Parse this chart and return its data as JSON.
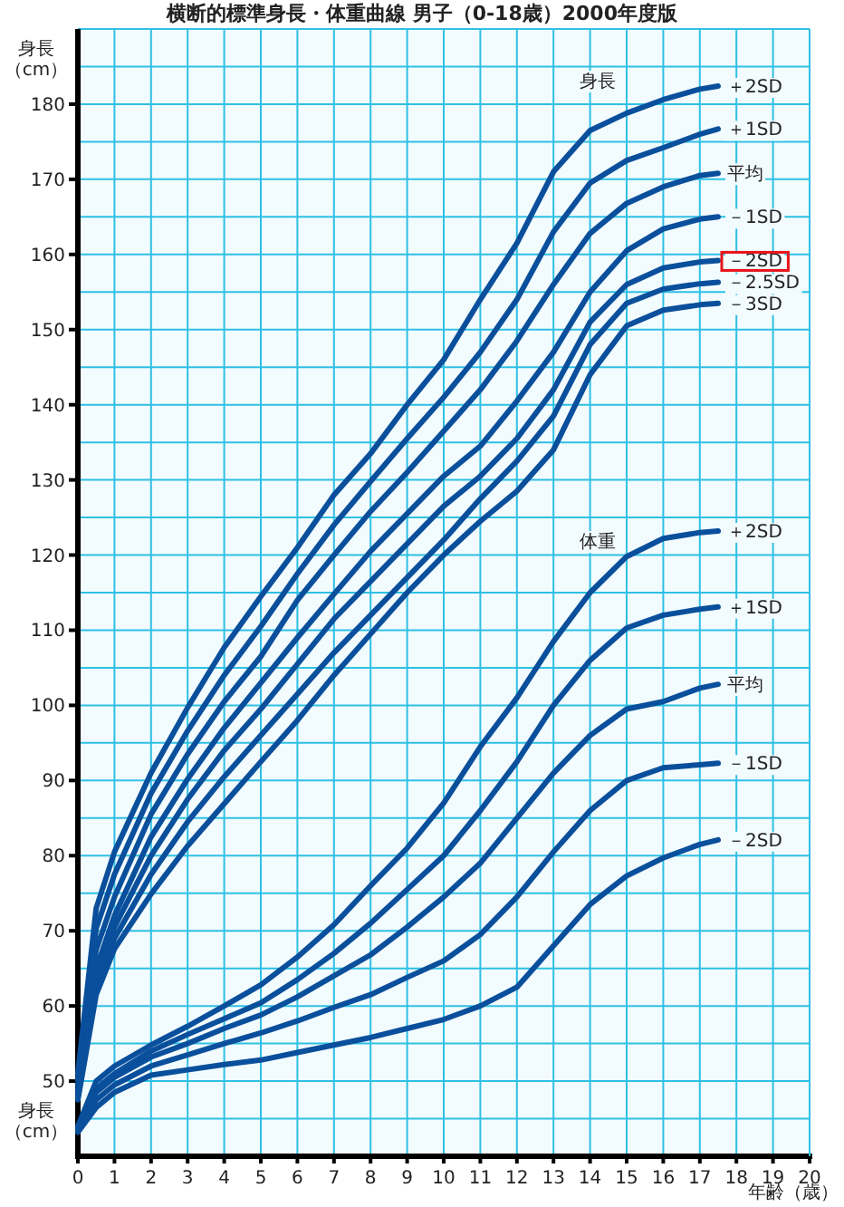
{
  "chart_data": {
    "type": "line",
    "title": "横断的標準身長・体重曲線 男子（0-18歳）2000年度版",
    "xlabel": "年齢（歳）",
    "ylabel": "身長（cm）",
    "annotations": [
      "身長",
      "体重",
      "身長（cm）"
    ],
    "x": [
      0,
      0.5,
      1,
      2,
      3,
      4,
      5,
      6,
      7,
      8,
      9,
      10,
      11,
      12,
      13,
      14,
      15,
      16,
      17,
      17.5
    ],
    "xlim": [
      0,
      20
    ],
    "ylim": [
      40,
      190
    ],
    "xticks": [
      0,
      1,
      2,
      3,
      4,
      5,
      6,
      7,
      8,
      9,
      10,
      11,
      12,
      13,
      14,
      15,
      16,
      17,
      18,
      19,
      20
    ],
    "yticks": [
      50,
      60,
      70,
      80,
      90,
      100,
      110,
      120,
      130,
      140,
      150,
      160,
      170,
      180
    ],
    "grid": true,
    "series": [
      {
        "name": "＋2SD",
        "color": "#0a4f9c",
        "values": [
          51,
          73,
          80.5,
          91,
          99.7,
          107.7,
          114.5,
          121,
          128,
          133.5,
          140,
          146,
          154,
          161.5,
          171,
          176.5,
          178.8,
          180.6,
          182,
          182.4
        ]
      },
      {
        "name": "＋1SD",
        "color": "#0a4f9c",
        "values": [
          50.2,
          70.3,
          77.5,
          88.3,
          96.6,
          104,
          110.5,
          117.5,
          124,
          129.8,
          135.5,
          141,
          147,
          154,
          163,
          169.5,
          172.5,
          174.2,
          176,
          176.7
        ]
      },
      {
        "name": "平均",
        "color": "#0a4f9c",
        "values": [
          49.5,
          67.5,
          74.5,
          85.5,
          93.5,
          100.5,
          106.5,
          114,
          120,
          125.8,
          131,
          136.5,
          142,
          148.5,
          156,
          162.8,
          166.8,
          169,
          170.5,
          170.8
        ]
      },
      {
        "name": "－1SD",
        "color": "#0a4f9c",
        "values": [
          48.8,
          65,
          72,
          82.5,
          90.2,
          97,
          103,
          109,
          114.8,
          120.5,
          125.5,
          130.5,
          134.5,
          140.5,
          147,
          155,
          160.5,
          163.4,
          164.7,
          165
        ]
      },
      {
        "name": "－2SD",
        "color": "#0a4f9c",
        "values": [
          48.2,
          63.5,
          70.5,
          80,
          87.5,
          94,
          99.5,
          105.5,
          111.5,
          116.5,
          121.5,
          126.5,
          130.5,
          135.5,
          142,
          151,
          156,
          158.2,
          159,
          159.2
        ]
      },
      {
        "name": "－2.5SD",
        "color": "#0a4f9c",
        "values": [
          47.8,
          62.5,
          69,
          77.5,
          84.5,
          90.5,
          96,
          101.5,
          107,
          112,
          117,
          122,
          127.5,
          132.5,
          138.5,
          148,
          153.5,
          155.4,
          156.1,
          156.3
        ]
      },
      {
        "name": "－3SD",
        "color": "#0a4f9c",
        "values": [
          47.5,
          61.5,
          67.6,
          74.9,
          81.3,
          86.9,
          92.5,
          98,
          104,
          109.5,
          115,
          120,
          124.5,
          128.5,
          134,
          144,
          150.5,
          152.6,
          153.3,
          153.5
        ]
      },
      {
        "name": "＋2SD",
        "color": "#0a4f9c",
        "values": [
          44,
          50,
          52,
          54.8,
          57.3,
          60,
          62.8,
          66.5,
          70.8,
          76,
          81,
          87,
          94.5,
          101,
          108.5,
          115,
          119.8,
          122.2,
          123,
          123.2
        ]
      },
      {
        "name": "＋1SD",
        "color": "#0a4f9c",
        "values": [
          43.8,
          49,
          51,
          54,
          56.2,
          58.3,
          60.4,
          63.5,
          67,
          71,
          75.5,
          80,
          86,
          92.5,
          100,
          106,
          110.3,
          112,
          112.8,
          113.1
        ]
      },
      {
        "name": "平均",
        "color": "#0a4f9c",
        "values": [
          43.6,
          48.5,
          50.5,
          53.2,
          55,
          57,
          58.8,
          61.2,
          64,
          66.8,
          70.5,
          74.5,
          79,
          85,
          91,
          96,
          99.5,
          100.5,
          102.3,
          102.8
        ]
      },
      {
        "name": "－1SD",
        "color": "#0a4f9c",
        "values": [
          43.4,
          47.5,
          49.5,
          52,
          53.5,
          55,
          56.4,
          58,
          59.8,
          61.5,
          63.8,
          66,
          69.5,
          74.5,
          80.5,
          86,
          90,
          91.7,
          92.1,
          92.3
        ]
      },
      {
        "name": "－2SD",
        "color": "#0a4f9c",
        "values": [
          43.2,
          46.5,
          48.5,
          50.8,
          51.5,
          52.2,
          52.8,
          53.8,
          54.8,
          55.8,
          57,
          58.2,
          60,
          62.5,
          68,
          73.5,
          77.3,
          79.7,
          81.5,
          82.1
        ]
      }
    ]
  }
}
